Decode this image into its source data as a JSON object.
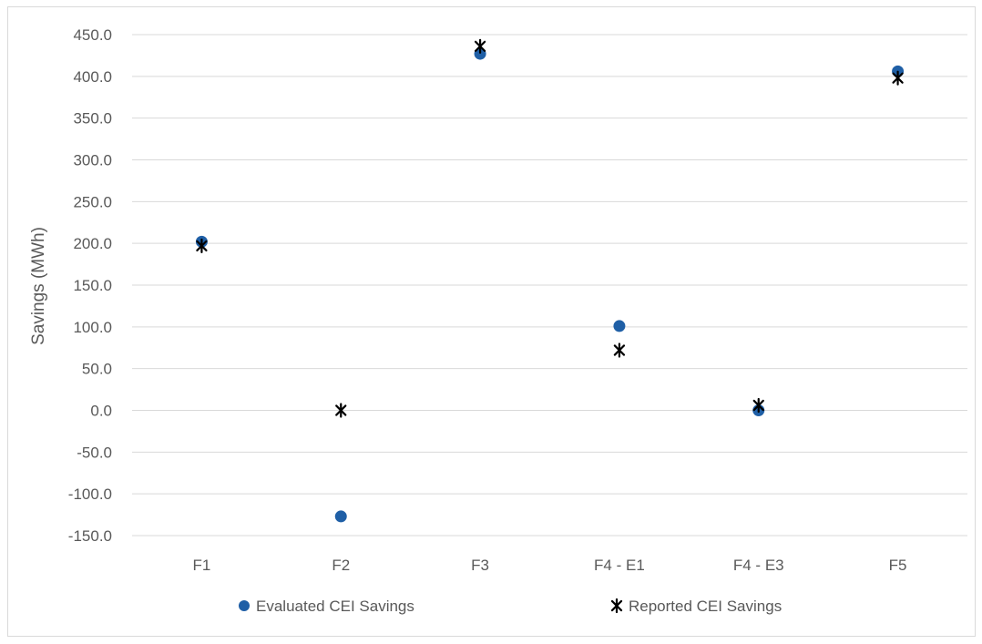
{
  "chart_data": {
    "type": "scatter",
    "categories": [
      "F1",
      "F2",
      "F3",
      "F4 - E1",
      "F4 - E3",
      "F5"
    ],
    "series": [
      {
        "name": "Evaluated CEI Savings",
        "marker": "circle",
        "color": "#1f5fa6",
        "values": [
          202.0,
          -127.0,
          427.0,
          101.0,
          0.0,
          406.0
        ]
      },
      {
        "name": "Reported CEI Savings",
        "marker": "asterisk",
        "color": "#000000",
        "values": [
          197.0,
          0.0,
          436.0,
          72.0,
          6.0,
          398.0
        ]
      }
    ],
    "ylabel": "Savings (MWh)",
    "xlabel": "",
    "ylim": [
      -150,
      450
    ],
    "yticks": [
      -150,
      -100,
      -50,
      0,
      50,
      100,
      150,
      200,
      250,
      300,
      350,
      400,
      450
    ],
    "ytick_format": "1 decimal",
    "grid": true,
    "legend_position": "bottom"
  }
}
